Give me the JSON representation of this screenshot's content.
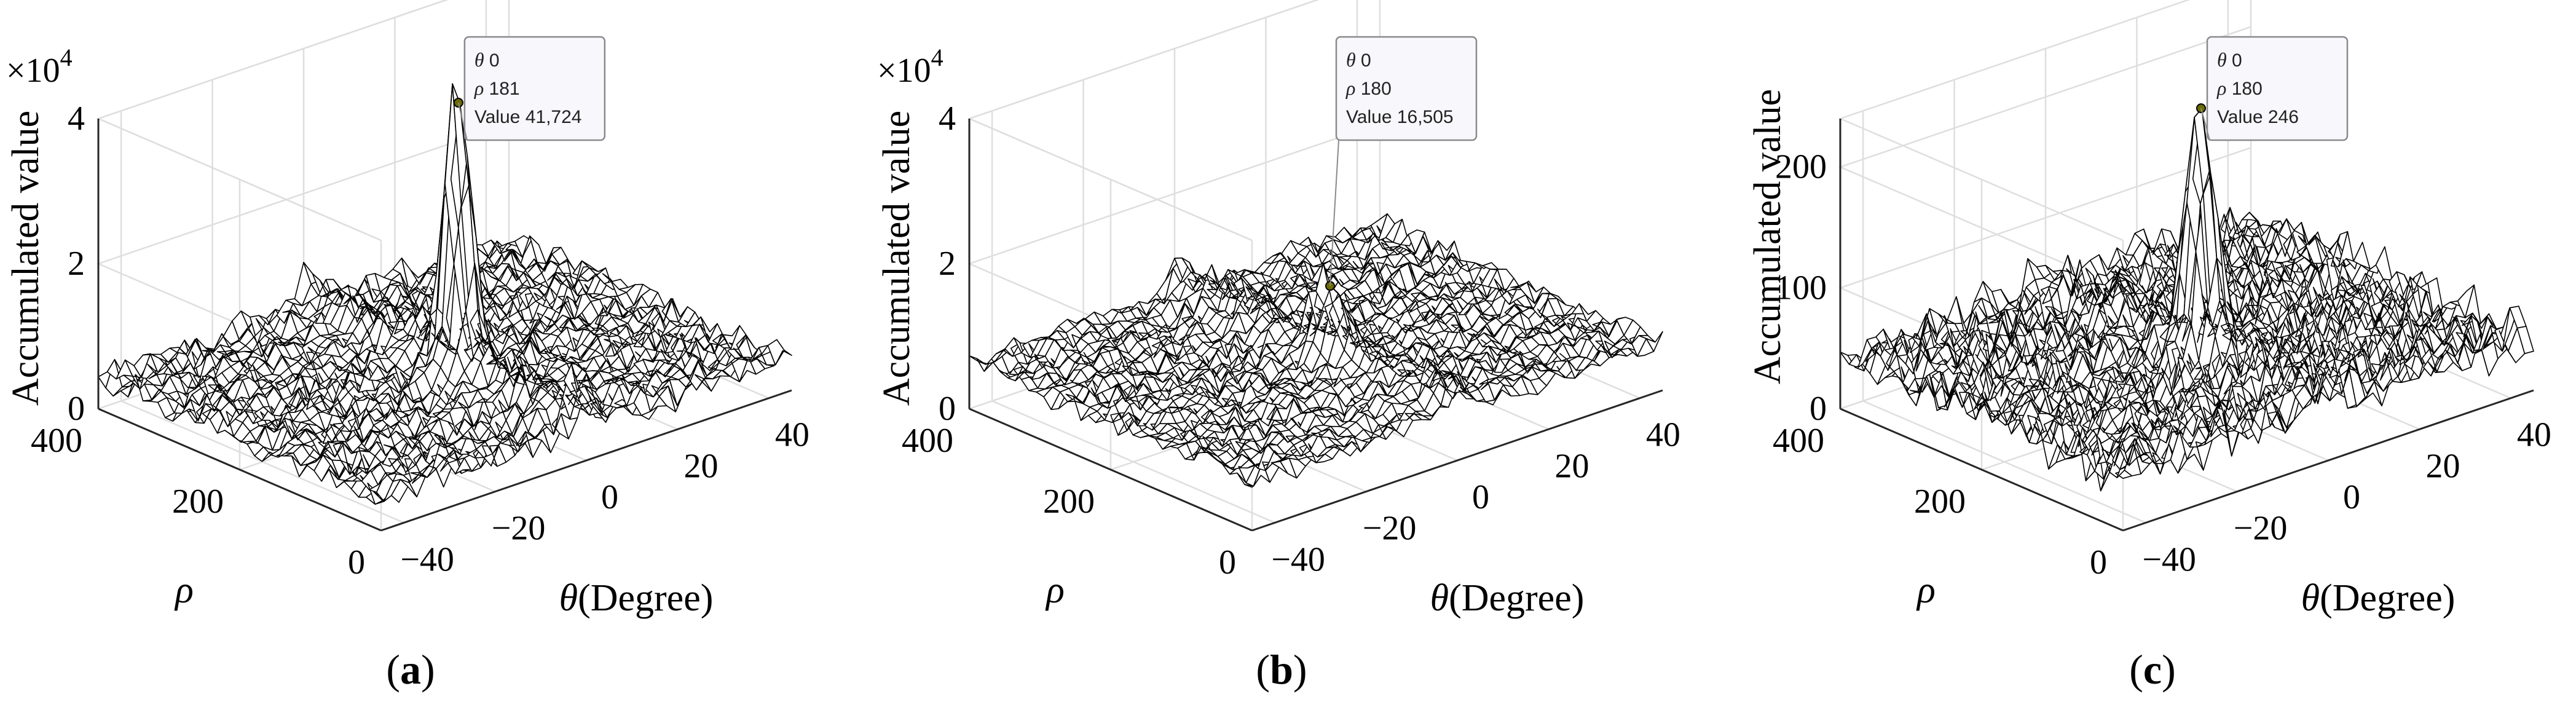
{
  "chart_data": [
    {
      "type": "surface3d",
      "panel_label": "a",
      "xlabel_symbol": "θ",
      "xlabel_unit": "(Degree)",
      "ylabel": "ρ",
      "zlabel": "Accumulated value",
      "x_ticks": [
        "−40",
        "−20",
        "0",
        "20",
        "40"
      ],
      "y_ticks": [
        "0",
        "200",
        "400"
      ],
      "z_ticks": [
        "0",
        "2",
        "4"
      ],
      "z_exponent_base": "×10",
      "z_exponent_power": "4",
      "xlim": [
        -45,
        45
      ],
      "ylim": [
        0,
        400
      ],
      "zlim": [
        0,
        40000
      ],
      "z_tick_values": [
        0,
        20000,
        40000
      ],
      "background_level": 4500,
      "noise_level": 3200,
      "ridge_level": 6000,
      "peak": {
        "theta": 0,
        "rho": 181,
        "value": 41724
      },
      "tooltip": {
        "theta_label": "θ",
        "theta_value": "0",
        "rho_label": "ρ",
        "rho_value": "181",
        "value_label": "Value",
        "value_text": "41,724"
      }
    },
    {
      "type": "surface3d",
      "panel_label": "b",
      "xlabel_symbol": "θ",
      "xlabel_unit": "(Degree)",
      "ylabel": "ρ",
      "zlabel": "Accumulated value",
      "x_ticks": [
        "−40",
        "−20",
        "0",
        "20",
        "40"
      ],
      "y_ticks": [
        "0",
        "200",
        "400"
      ],
      "z_ticks": [
        "0",
        "2",
        "4"
      ],
      "z_exponent_base": "×10",
      "z_exponent_power": "4",
      "xlim": [
        -45,
        45
      ],
      "ylim": [
        0,
        400
      ],
      "zlim": [
        0,
        40000
      ],
      "z_tick_values": [
        0,
        20000,
        40000
      ],
      "background_level": 6500,
      "noise_level": 2500,
      "ridge_level": 5000,
      "peak": {
        "theta": 0,
        "rho": 180,
        "value": 16505
      },
      "tooltip": {
        "theta_label": "θ",
        "theta_value": "0",
        "rho_label": "ρ",
        "rho_value": "180",
        "value_label": "Value",
        "value_text": "16,505"
      }
    },
    {
      "type": "surface3d",
      "panel_label": "c",
      "xlabel_symbol": "θ",
      "xlabel_unit": "(Degree)",
      "ylabel": "ρ",
      "zlabel": "Accumulated value",
      "x_ticks": [
        "−40",
        "−20",
        "0",
        "20",
        "40"
      ],
      "y_ticks": [
        "0",
        "200",
        "400"
      ],
      "z_ticks": [
        "0",
        "100",
        "200"
      ],
      "z_exponent_base": "",
      "z_exponent_power": "",
      "xlim": [
        -45,
        45
      ],
      "ylim": [
        0,
        400
      ],
      "zlim": [
        0,
        240
      ],
      "z_tick_values": [
        0,
        100,
        200
      ],
      "background_level": 45,
      "noise_level": 30,
      "ridge_level": 20,
      "peak": {
        "theta": 0,
        "rho": 180,
        "value": 246
      },
      "tooltip": {
        "theta_label": "θ",
        "theta_value": "0",
        "rho_label": "ρ",
        "rho_value": "180",
        "value_label": "Value",
        "value_text": "246"
      }
    }
  ]
}
